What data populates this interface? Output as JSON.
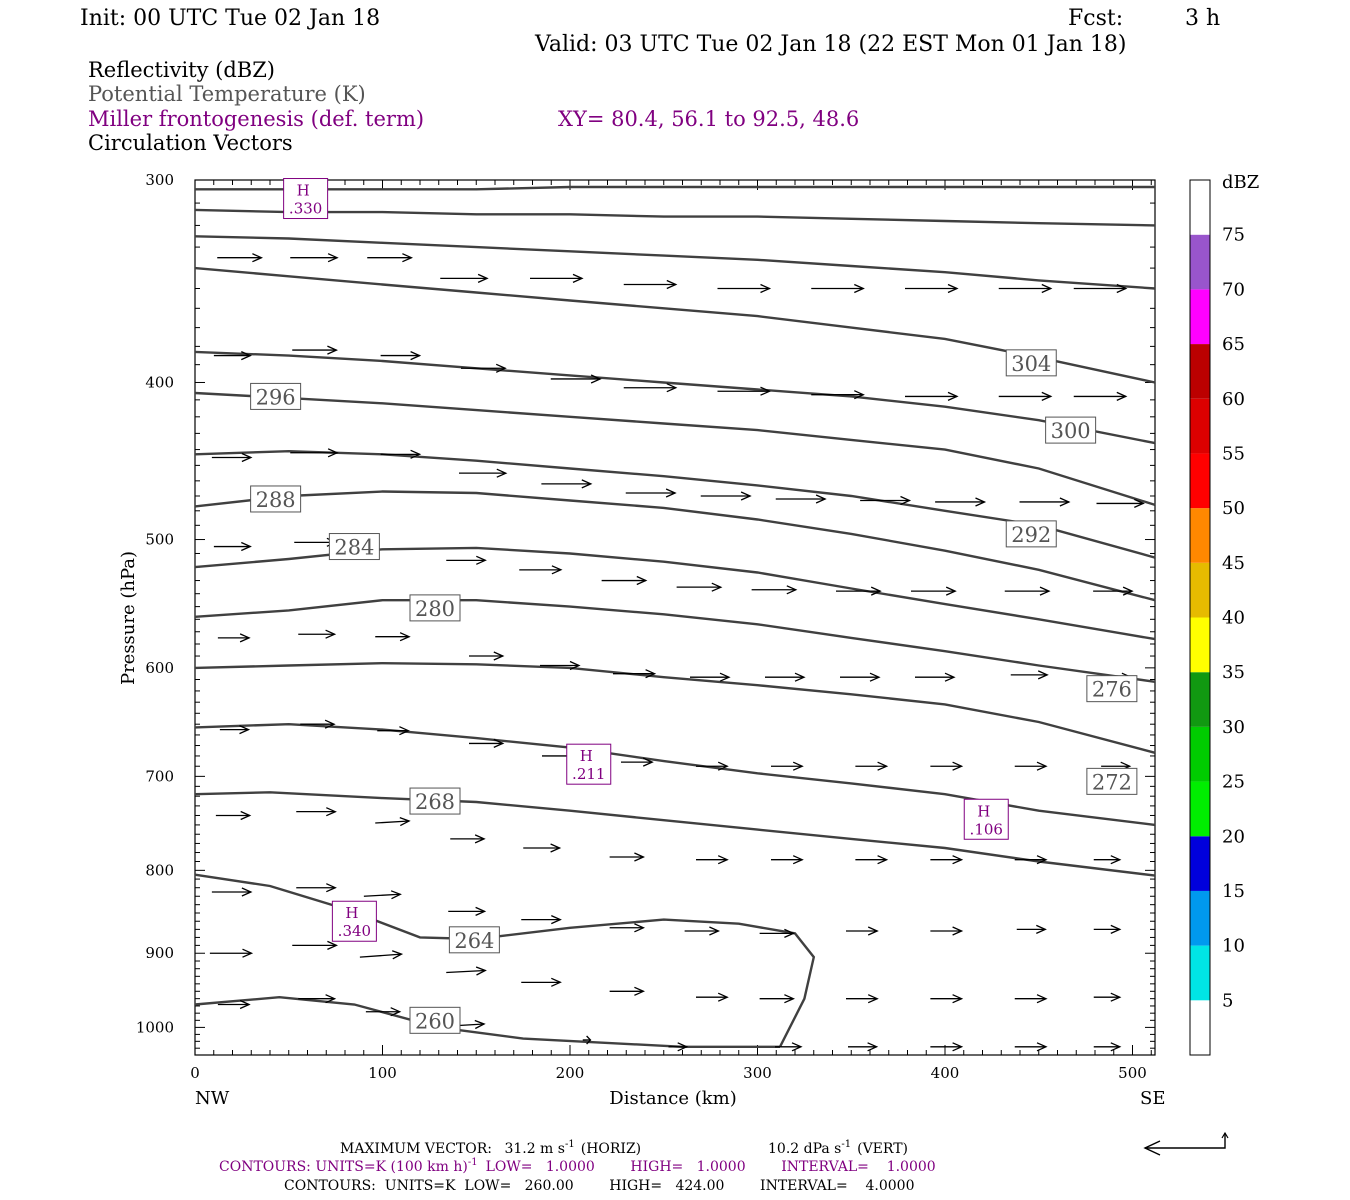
{
  "header": {
    "init": "Init: 00 UTC Tue 02 Jan 18",
    "fcst_label": "Fcst:",
    "fcst_value": "3 h",
    "valid": "Valid: 03 UTC Tue 02 Jan 18 (22 EST Mon 01 Jan 18)"
  },
  "fields": {
    "reflectivity": "Reflectivity (dBZ)",
    "theta": "Potential Temperature (K)",
    "miller": "Miller frontogenesis (def. term)",
    "xy": "XY=  80.4, 56.1 to  92.5, 48.6",
    "circulation": "Circulation Vectors"
  },
  "colors": {
    "theta_contour": "#404040",
    "miller_text": "#800080",
    "vector": "#000000"
  },
  "chart_data": {
    "type": "line",
    "xlabel": "Distance (km)",
    "ylabel": "Pressure (hPa)",
    "xlim": [
      0,
      512
    ],
    "ylim": [
      1040,
      300
    ],
    "y_scale": "log-pressure",
    "x_ticks": [
      "0",
      "100",
      "200",
      "300",
      "400",
      "500"
    ],
    "y_ticks": [
      "300",
      "400",
      "500",
      "600",
      "700",
      "800",
      "900",
      "1000"
    ],
    "left_end": "NW",
    "right_end": "SE",
    "theta_contours": [
      {
        "level": 260,
        "label": "260",
        "label_pos": [
          128,
          990
        ],
        "x": [
          0,
          45,
          85,
          130,
          175,
          260,
          312
        ],
        "p": [
          968,
          958,
          968,
          1000,
          1016,
          1028,
          1028
        ]
      },
      {
        "level": 264,
        "label": "264",
        "label_pos": [
          149,
          883
        ],
        "x": [
          0,
          40,
          80,
          120,
          150,
          200,
          250,
          290,
          320,
          330,
          325,
          312
        ],
        "p": [
          805,
          818,
          845,
          880,
          882,
          868,
          858,
          863,
          875,
          905,
          960,
          1028
        ]
      },
      {
        "level": 268,
        "label": "268",
        "label_pos": [
          128,
          725
        ],
        "x": [
          0,
          40,
          100,
          150,
          200,
          250,
          300,
          350,
          400,
          450,
          512
        ],
        "p": [
          718,
          716,
          722,
          726,
          735,
          745,
          755,
          765,
          775,
          790,
          806
        ]
      },
      {
        "level": 272,
        "label": "272",
        "label_pos": [
          489,
          705
        ],
        "x": [
          0,
          50,
          100,
          150,
          200,
          250,
          300,
          350,
          400,
          450,
          512
        ],
        "p": [
          653,
          650,
          655,
          663,
          672,
          685,
          697,
          707,
          718,
          735,
          750
        ]
      },
      {
        "level": 276,
        "label": "276",
        "label_pos": [
          489,
          618
        ],
        "x": [
          0,
          50,
          100,
          150,
          200,
          250,
          300,
          350,
          400,
          450,
          512
        ],
        "p": [
          600,
          598,
          596,
          597,
          600,
          608,
          615,
          623,
          632,
          648,
          677
        ]
      },
      {
        "level": 280,
        "label": "280",
        "label_pos": [
          128,
          551
        ],
        "x": [
          0,
          50,
          100,
          150,
          200,
          250,
          300,
          350,
          400,
          450,
          512
        ],
        "p": [
          558,
          553,
          545,
          545,
          550,
          556,
          564,
          575,
          586,
          598,
          612
        ]
      },
      {
        "level": 284,
        "label": "284",
        "label_pos": [
          85,
          505
        ],
        "x": [
          0,
          50,
          100,
          150,
          200,
          250,
          300,
          350,
          400,
          450,
          512
        ],
        "p": [
          520,
          514,
          507,
          506,
          510,
          516,
          524,
          536,
          548,
          560,
          576
        ]
      },
      {
        "level": 288,
        "label": "288",
        "label_pos": [
          43,
          472
        ],
        "x": [
          0,
          50,
          100,
          150,
          200,
          250,
          300,
          350,
          400,
          450,
          512
        ],
        "p": [
          477,
          470,
          467,
          468,
          473,
          478,
          486,
          496,
          508,
          522,
          545
        ]
      },
      {
        "level": 292,
        "label": "292",
        "label_pos": [
          446,
          496
        ],
        "x": [
          0,
          50,
          100,
          150,
          200,
          250,
          300,
          350,
          400,
          450,
          512
        ],
        "p": [
          443,
          441,
          443,
          447,
          452,
          457,
          463,
          470,
          480,
          490,
          513
        ]
      },
      {
        "level": 296,
        "label": "296",
        "label_pos": [
          43,
          408
        ],
        "x": [
          0,
          50,
          100,
          150,
          200,
          250,
          300,
          350,
          400,
          450,
          512
        ],
        "p": [
          406,
          409,
          412,
          416,
          420,
          424,
          428,
          434,
          440,
          452,
          476
        ]
      },
      {
        "level": 300,
        "label": "300",
        "label_pos": [
          467,
          428
        ],
        "x": [
          0,
          50,
          100,
          150,
          200,
          250,
          300,
          350,
          400,
          450,
          512
        ],
        "p": [
          383,
          385,
          388,
          392,
          396,
          400,
          404,
          408,
          414,
          422,
          436
        ]
      },
      {
        "level": 304,
        "label": "304",
        "label_pos": [
          446,
          389
        ],
        "x": [
          0,
          50,
          100,
          150,
          200,
          250,
          300,
          350,
          400,
          450,
          512
        ],
        "p": [
          340,
          344,
          348,
          352,
          356,
          360,
          364,
          370,
          376,
          386,
          400
        ]
      },
      {
        "level": 308,
        "label": "",
        "x": [
          0,
          50,
          100,
          150,
          200,
          250,
          300,
          350,
          400,
          450,
          512
        ],
        "p": [
          325,
          326,
          328,
          330,
          332,
          334,
          336,
          339,
          342,
          346,
          350
        ]
      },
      {
        "level": 312,
        "label": "",
        "x": [
          0,
          50,
          100,
          150,
          200,
          250,
          300,
          350,
          400,
          450,
          512
        ],
        "p": [
          313,
          314,
          314,
          315,
          315,
          316,
          316,
          317,
          318,
          319,
          320
        ]
      },
      {
        "level": 316,
        "label": "",
        "x": [
          0,
          50,
          100,
          150,
          200,
          250,
          300,
          350,
          400,
          450,
          512
        ],
        "p": [
          304,
          304,
          304,
          304,
          303,
          303,
          303,
          303,
          303,
          303,
          303
        ]
      }
    ],
    "frontogenesis_maxima": [
      {
        "label": "H",
        "value": ".330",
        "x": 59,
        "p": 308
      },
      {
        "label": "H",
        "value": ".211",
        "x": 210,
        "p": 688
      },
      {
        "label": "H",
        "value": ".106",
        "x": 422,
        "p": 744
      },
      {
        "label": "H",
        "value": ".340",
        "x": 85,
        "p": 860
      }
    ],
    "vectors": [
      {
        "x": 30,
        "p": 335,
        "u": 34,
        "w": 0
      },
      {
        "x": 70,
        "p": 335,
        "u": 36,
        "w": 0
      },
      {
        "x": 110,
        "p": 335,
        "u": 34,
        "w": 0
      },
      {
        "x": 150,
        "p": 345,
        "u": 36,
        "w": 0
      },
      {
        "x": 200,
        "p": 345,
        "u": 40,
        "w": 0
      },
      {
        "x": 250,
        "p": 348,
        "u": 40,
        "w": 0
      },
      {
        "x": 300,
        "p": 350,
        "u": 40,
        "w": 0
      },
      {
        "x": 350,
        "p": 350,
        "u": 40,
        "w": 0
      },
      {
        "x": 400,
        "p": 350,
        "u": 40,
        "w": 0
      },
      {
        "x": 450,
        "p": 350,
        "u": 40,
        "w": 0
      },
      {
        "x": 490,
        "p": 350,
        "u": 40,
        "w": 0
      },
      {
        "x": 25,
        "p": 385,
        "u": 28,
        "w": 0
      },
      {
        "x": 70,
        "p": 382,
        "u": 34,
        "w": 0
      },
      {
        "x": 115,
        "p": 385,
        "u": 30,
        "w": 0
      },
      {
        "x": 160,
        "p": 392,
        "u": 34,
        "w": 0
      },
      {
        "x": 210,
        "p": 398,
        "u": 38,
        "w": 0
      },
      {
        "x": 250,
        "p": 403,
        "u": 40,
        "w": 0
      },
      {
        "x": 300,
        "p": 405,
        "u": 40,
        "w": 0
      },
      {
        "x": 350,
        "p": 407,
        "u": 40,
        "w": 0
      },
      {
        "x": 400,
        "p": 408,
        "u": 40,
        "w": 0
      },
      {
        "x": 450,
        "p": 408,
        "u": 40,
        "w": 0
      },
      {
        "x": 490,
        "p": 408,
        "u": 40,
        "w": 0
      },
      {
        "x": 25,
        "p": 445,
        "u": 30,
        "w": 0
      },
      {
        "x": 70,
        "p": 442,
        "u": 36,
        "w": 0
      },
      {
        "x": 115,
        "p": 443,
        "u": 30,
        "w": 0
      },
      {
        "x": 160,
        "p": 455,
        "u": 36,
        "w": 0
      },
      {
        "x": 205,
        "p": 462,
        "u": 38,
        "w": 0
      },
      {
        "x": 250,
        "p": 468,
        "u": 38,
        "w": 0
      },
      {
        "x": 290,
        "p": 470,
        "u": 38,
        "w": 0
      },
      {
        "x": 330,
        "p": 472,
        "u": 38,
        "w": 0
      },
      {
        "x": 375,
        "p": 473,
        "u": 38,
        "w": 0
      },
      {
        "x": 415,
        "p": 474,
        "u": 38,
        "w": 0
      },
      {
        "x": 460,
        "p": 474,
        "u": 38,
        "w": 0
      },
      {
        "x": 500,
        "p": 475,
        "u": 36,
        "w": 0
      },
      {
        "x": 25,
        "p": 505,
        "u": 28,
        "w": 0
      },
      {
        "x": 70,
        "p": 502,
        "u": 32,
        "w": 0
      },
      {
        "x": 150,
        "p": 515,
        "u": 30,
        "w": 0
      },
      {
        "x": 190,
        "p": 522,
        "u": 32,
        "w": 0
      },
      {
        "x": 235,
        "p": 530,
        "u": 34,
        "w": 0
      },
      {
        "x": 275,
        "p": 535,
        "u": 34,
        "w": 0
      },
      {
        "x": 315,
        "p": 537,
        "u": 34,
        "w": 0
      },
      {
        "x": 360,
        "p": 538,
        "u": 34,
        "w": 0
      },
      {
        "x": 400,
        "p": 538,
        "u": 34,
        "w": 0
      },
      {
        "x": 450,
        "p": 538,
        "u": 34,
        "w": 0
      },
      {
        "x": 495,
        "p": 538,
        "u": 30,
        "w": 0
      },
      {
        "x": 25,
        "p": 575,
        "u": 24,
        "w": 0
      },
      {
        "x": 70,
        "p": 572,
        "u": 28,
        "w": 0
      },
      {
        "x": 110,
        "p": 574,
        "u": 26,
        "w": 0
      },
      {
        "x": 160,
        "p": 590,
        "u": 26,
        "w": 0
      },
      {
        "x": 200,
        "p": 598,
        "u": 30,
        "w": 0
      },
      {
        "x": 240,
        "p": 605,
        "u": 32,
        "w": 0
      },
      {
        "x": 280,
        "p": 608,
        "u": 30,
        "w": 0
      },
      {
        "x": 320,
        "p": 608,
        "u": 30,
        "w": 0
      },
      {
        "x": 360,
        "p": 608,
        "u": 30,
        "w": 0
      },
      {
        "x": 400,
        "p": 608,
        "u": 30,
        "w": 0
      },
      {
        "x": 450,
        "p": 606,
        "u": 28,
        "w": 0
      },
      {
        "x": 495,
        "p": 608,
        "u": 26,
        "w": 0
      },
      {
        "x": 25,
        "p": 655,
        "u": 22,
        "w": 0
      },
      {
        "x": 70,
        "p": 650,
        "u": 26,
        "w": 0
      },
      {
        "x": 110,
        "p": 656,
        "u": 24,
        "w": 0
      },
      {
        "x": 160,
        "p": 668,
        "u": 26,
        "w": 0
      },
      {
        "x": 200,
        "p": 680,
        "u": 28,
        "w": 0
      },
      {
        "x": 240,
        "p": 686,
        "u": 24,
        "w": 0
      },
      {
        "x": 280,
        "p": 690,
        "u": 24,
        "w": 0
      },
      {
        "x": 320,
        "p": 690,
        "u": 24,
        "w": 0
      },
      {
        "x": 365,
        "p": 690,
        "u": 24,
        "w": 0
      },
      {
        "x": 405,
        "p": 690,
        "u": 24,
        "w": 0
      },
      {
        "x": 450,
        "p": 690,
        "u": 24,
        "w": 0
      },
      {
        "x": 495,
        "p": 690,
        "u": 22,
        "w": 0
      },
      {
        "x": 25,
        "p": 740,
        "u": 26,
        "w": 0
      },
      {
        "x": 70,
        "p": 736,
        "u": 30,
        "w": 0
      },
      {
        "x": 110,
        "p": 748,
        "u": 26,
        "w": -2
      },
      {
        "x": 150,
        "p": 765,
        "u": 26,
        "w": 0
      },
      {
        "x": 190,
        "p": 775,
        "u": 28,
        "w": 0
      },
      {
        "x": 235,
        "p": 785,
        "u": 26,
        "w": 0
      },
      {
        "x": 280,
        "p": 788,
        "u": 24,
        "w": 0
      },
      {
        "x": 320,
        "p": 788,
        "u": 24,
        "w": 0
      },
      {
        "x": 365,
        "p": 788,
        "u": 24,
        "w": 0
      },
      {
        "x": 405,
        "p": 788,
        "u": 24,
        "w": 0
      },
      {
        "x": 450,
        "p": 788,
        "u": 24,
        "w": 0
      },
      {
        "x": 490,
        "p": 788,
        "u": 20,
        "w": 0
      },
      {
        "x": 25,
        "p": 825,
        "u": 30,
        "w": 0
      },
      {
        "x": 70,
        "p": 820,
        "u": 30,
        "w": 0
      },
      {
        "x": 105,
        "p": 830,
        "u": 28,
        "w": -2
      },
      {
        "x": 150,
        "p": 848,
        "u": 28,
        "w": 0
      },
      {
        "x": 190,
        "p": 858,
        "u": 30,
        "w": 0
      },
      {
        "x": 235,
        "p": 868,
        "u": 26,
        "w": 0
      },
      {
        "x": 275,
        "p": 872,
        "u": 26,
        "w": 0
      },
      {
        "x": 315,
        "p": 875,
        "u": 26,
        "w": 0
      },
      {
        "x": 360,
        "p": 872,
        "u": 24,
        "w": 0
      },
      {
        "x": 405,
        "p": 872,
        "u": 24,
        "w": 0
      },
      {
        "x": 450,
        "p": 870,
        "u": 22,
        "w": 0
      },
      {
        "x": 490,
        "p": 870,
        "u": 20,
        "w": 0
      },
      {
        "x": 25,
        "p": 900,
        "u": 32,
        "w": 0
      },
      {
        "x": 70,
        "p": 890,
        "u": 34,
        "w": 0
      },
      {
        "x": 105,
        "p": 905,
        "u": 32,
        "w": -3
      },
      {
        "x": 150,
        "p": 925,
        "u": 30,
        "w": -2
      },
      {
        "x": 190,
        "p": 938,
        "u": 30,
        "w": 0
      },
      {
        "x": 235,
        "p": 950,
        "u": 26,
        "w": 0
      },
      {
        "x": 280,
        "p": 958,
        "u": 24,
        "w": 0
      },
      {
        "x": 315,
        "p": 960,
        "u": 26,
        "w": 0
      },
      {
        "x": 360,
        "p": 960,
        "u": 24,
        "w": 0
      },
      {
        "x": 405,
        "p": 960,
        "u": 24,
        "w": 0
      },
      {
        "x": 450,
        "p": 960,
        "u": 24,
        "w": 0
      },
      {
        "x": 490,
        "p": 958,
        "u": 20,
        "w": 0
      },
      {
        "x": 25,
        "p": 968,
        "u": 24,
        "w": 0
      },
      {
        "x": 70,
        "p": 960,
        "u": 28,
        "w": 0
      },
      {
        "x": 105,
        "p": 978,
        "u": 26,
        "w": 0
      },
      {
        "x": 150,
        "p": 998,
        "u": 26,
        "w": -2
      },
      {
        "x": 210,
        "p": 1018,
        "u": 6,
        "w": 0
      },
      {
        "x": 260,
        "p": 1028,
        "u": 14,
        "w": 0
      },
      {
        "x": 320,
        "p": 1028,
        "u": 20,
        "w": 0
      },
      {
        "x": 360,
        "p": 1028,
        "u": 22,
        "w": 0
      },
      {
        "x": 405,
        "p": 1028,
        "u": 24,
        "w": 0
      },
      {
        "x": 450,
        "p": 1028,
        "u": 24,
        "w": 0
      },
      {
        "x": 490,
        "p": 1028,
        "u": 20,
        "w": 0
      }
    ],
    "colorbar": {
      "label": "dBZ",
      "ticks": [
        "5",
        "10",
        "15",
        "20",
        "25",
        "30",
        "35",
        "40",
        "45",
        "50",
        "55",
        "60",
        "65",
        "70",
        "75"
      ],
      "colors": [
        "#ffffff",
        "#00e5e5",
        "#0099ee",
        "#0000dd",
        "#00ee00",
        "#00cc00",
        "#119911",
        "#ffff00",
        "#e6bb00",
        "#ff8800",
        "#ff0000",
        "#dd0000",
        "#bb0000",
        "#ff00ff",
        "#9955cc",
        "#ffffff"
      ]
    }
  },
  "footer": {
    "max_vector_label": "MAXIMUM VECTOR:",
    "max_vector_horiz": "31.2 m s",
    "horiz_suffix": "(HORIZ)",
    "max_vector_vert": "10.2 dPa s",
    "vert_suffix": "(VERT)",
    "exponent": "-1",
    "contours1": "CONTOURS:  UNITS=K (100 km h)",
    "contours1_rest": "LOW=   1.0000        HIGH=   1.0000        INTERVAL=    1.0000",
    "contours2": "CONTOURS:  UNITS=K  LOW=   260.00        HIGH=   424.00        INTERVAL=    4.0000"
  }
}
